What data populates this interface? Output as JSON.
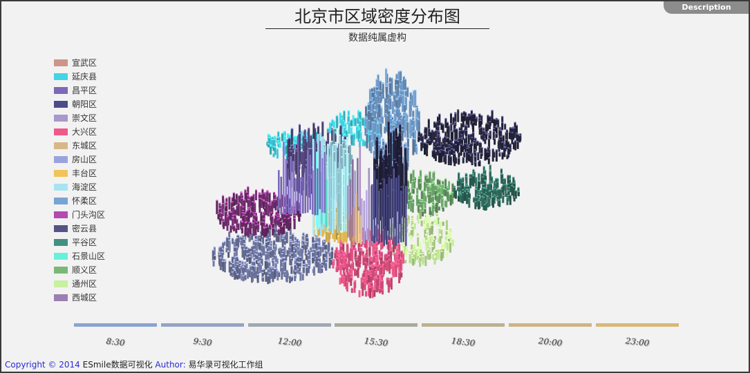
{
  "title": "北京市区域密度分布图",
  "subtitle": "数据纯属虚构",
  "description_button": "Description",
  "legend": [
    {
      "name": "宣武区",
      "color": "#cc9589"
    },
    {
      "name": "延庆县",
      "color": "#45d4e4"
    },
    {
      "name": "昌平区",
      "color": "#7a6ab8"
    },
    {
      "name": "朝阳区",
      "color": "#4c4c88"
    },
    {
      "name": "崇文区",
      "color": "#a898cc"
    },
    {
      "name": "大兴区",
      "color": "#f0588a"
    },
    {
      "name": "东城区",
      "color": "#d8b888"
    },
    {
      "name": "房山区",
      "color": "#9aa4dc"
    },
    {
      "name": "丰台区",
      "color": "#f0c45a"
    },
    {
      "name": "海淀区",
      "color": "#a8e4f0"
    },
    {
      "name": "怀柔区",
      "color": "#78a4d4"
    },
    {
      "name": "门头沟区",
      "color": "#b44ab0"
    },
    {
      "name": "密云县",
      "color": "#545488"
    },
    {
      "name": "平谷区",
      "color": "#449080"
    },
    {
      "name": "石景山区",
      "color": "#68f0dc"
    },
    {
      "name": "顺义区",
      "color": "#7ab878"
    },
    {
      "name": "通州区",
      "color": "#c8f0a0"
    },
    {
      "name": "西城区",
      "color": "#9a80b0"
    }
  ],
  "chart_data": {
    "type": "map",
    "title": "北京市区域密度分布图",
    "subtitle": "数据纯属虚构",
    "categories": [
      "宣武区",
      "延庆县",
      "昌平区",
      "朝阳区",
      "崇文区",
      "大兴区",
      "东城区",
      "房山区",
      "丰台区",
      "海淀区",
      "怀柔区",
      "门头沟区",
      "密云县",
      "平谷区",
      "石景山区",
      "顺义区",
      "通州区",
      "西城区"
    ],
    "legend_position": "left"
  },
  "timeline": {
    "labels": [
      "8:30",
      "9:30",
      "12:00",
      "15:30",
      "18:30",
      "20:00",
      "23:00"
    ],
    "colors": [
      "#8aa4d0",
      "#94a4c4",
      "#a0a8b4",
      "#aaaa9c",
      "#bcb090",
      "#ccb484",
      "#d8b878"
    ]
  },
  "footer": {
    "copyright": "Copyright © 2014",
    "brand": "ESmile数据可视化",
    "author_label": "Author:",
    "author": "易华录可视化工作组"
  }
}
